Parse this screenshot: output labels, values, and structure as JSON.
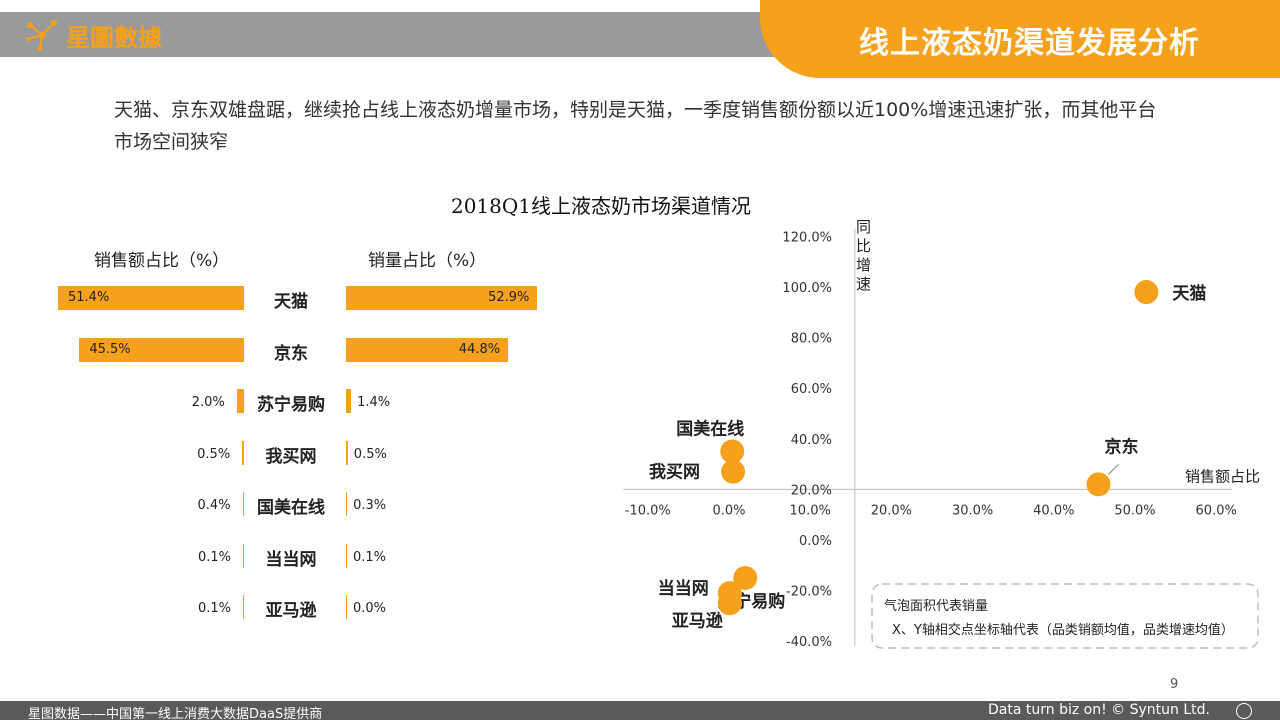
{
  "header": {
    "logo_text": "星圖數據",
    "title": "线上液态奶渠道发展分析"
  },
  "intro": "天猫、京东双雄盘踞，继续抢占线上液态奶增量市场，特别是天猫，一季度销售额份额以近100%增速迅速扩张，而其他平台市场空间狭窄",
  "chart_title": "2018Q1线上液态奶市场渠道情况",
  "bar_panel": {
    "left_header": "销售额占比（%）",
    "right_header": "销量占比（%）"
  },
  "chart_data": [
    {
      "type": "bar",
      "categories": [
        "天猫",
        "京东",
        "苏宁易购",
        "我买网",
        "国美在线",
        "当当网",
        "亚马逊"
      ],
      "series": [
        {
          "name": "销售额占比（%）",
          "values": [
            51.4,
            45.5,
            2.0,
            0.5,
            0.4,
            0.1,
            0.1
          ],
          "labels": [
            "51.4%",
            "45.5%",
            "2.0%",
            "0.5%",
            "0.4%",
            "0.1%",
            "0.1%"
          ]
        },
        {
          "name": "销量占比（%）",
          "values": [
            52.9,
            44.8,
            1.4,
            0.5,
            0.3,
            0.1,
            0.0
          ],
          "labels": [
            "52.9%",
            "44.8%",
            "1.4%",
            "0.5%",
            "0.3%",
            "0.1%",
            "0.0%"
          ]
        }
      ]
    },
    {
      "type": "scatter",
      "xlabel": "销售额占比",
      "ylabel": "同比增速",
      "x_ticks": [
        "-10.0%",
        "0.0%",
        "10.0%",
        "20.0%",
        "30.0%",
        "40.0%",
        "50.0%",
        "60.0%"
      ],
      "y_ticks": [
        "120.0%",
        "100.0%",
        "80.0%",
        "60.0%",
        "40.0%",
        "20.0%",
        "0.0%",
        "-20.0%",
        "-40.0%"
      ],
      "points": [
        {
          "name": "天猫",
          "x": 51.4,
          "y": 98
        },
        {
          "name": "京东",
          "x": 45.5,
          "y": 22
        },
        {
          "name": "苏宁易购",
          "x": 2.0,
          "y": -15
        },
        {
          "name": "国美在线",
          "x": 0.4,
          "y": 35
        },
        {
          "name": "我买网",
          "x": 0.5,
          "y": 27
        },
        {
          "name": "当当网",
          "x": 0.1,
          "y": -21
        },
        {
          "name": "亚马逊",
          "x": 0.1,
          "y": -25
        }
      ],
      "legend_lines": [
        "气泡面积代表销量",
        "X、Y轴相交点坐标轴代表（品类销额均值，品类增速均值）"
      ],
      "color": "#f6a11c"
    }
  ],
  "footer": {
    "left": "星图数据——中国第一线上消费大数据DaaS提供商",
    "right": "Data turn biz on! © Syntun Ltd.",
    "page": "9"
  }
}
